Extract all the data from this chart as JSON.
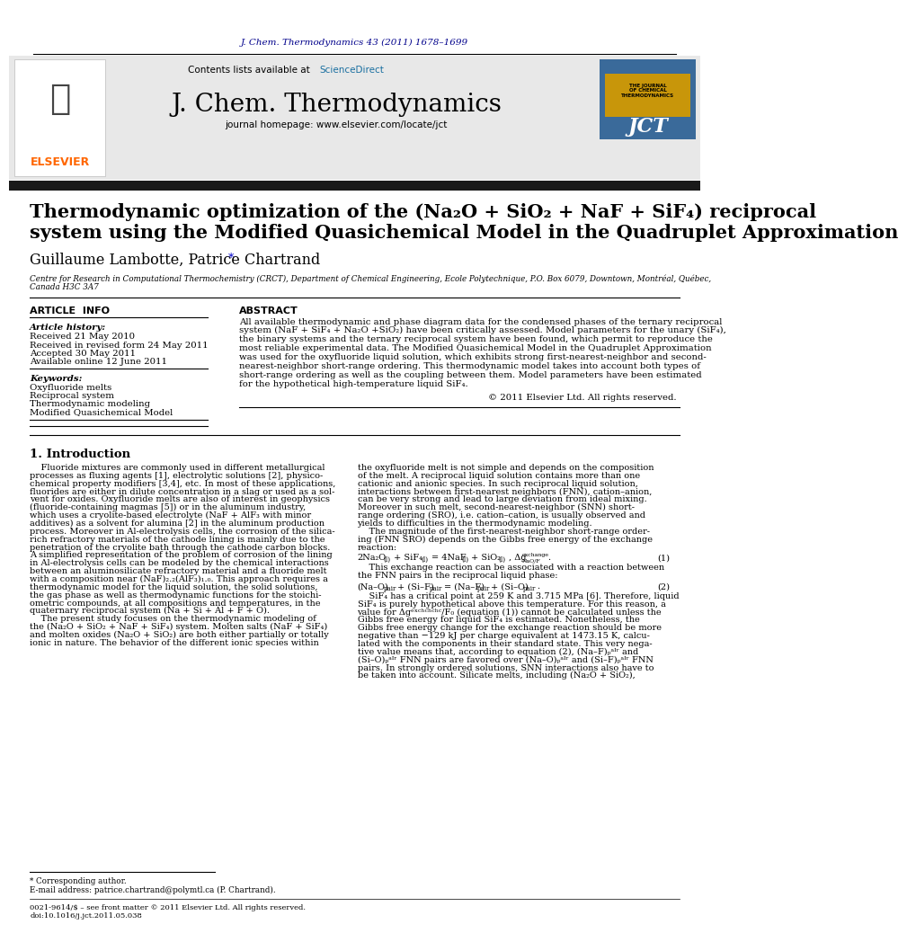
{
  "page_bg": "#ffffff",
  "journal_ref": "J. Chem. Thermodynamics 43 (2011) 1678–1699",
  "journal_ref_color": "#00008B",
  "header_bg": "#e8e8e8",
  "header_text": "Contents lists available at",
  "sciencedirect_text": "ScienceDirect",
  "sciencedirect_color": "#1a6fa0",
  "journal_name": "J. Chem. Thermodynamics",
  "homepage_text": "journal homepage: www.elsevier.com/locate/jct",
  "elsevier_color": "#ff6600",
  "thick_bar_color": "#1a1a1a",
  "article_title_line1": "Thermodynamic optimization of the (Na₂O + SiO₂ + NaF + SiF₄) reciprocal",
  "article_title_line2": "system using the Modified Quasichemical Model in the Quadruplet Approximation",
  "authors": "Guillaume Lambotte, Patrice Chartrand",
  "affiliation": "Centre for Research in Computational Thermochemistry (CRCT), Department of Chemical Engineering, Ecole Polytechnique, P.O. Box 6079, Downtown, Montréal, Québec,",
  "affiliation2": "Canada H3C 3A7",
  "article_info_label": "ARTICLE  INFO",
  "abstract_label": "ABSTRACT",
  "article_history_label": "Article history:",
  "received1": "Received 21 May 2010",
  "received2": "Received in revised form 24 May 2011",
  "accepted": "Accepted 30 May 2011",
  "available": "Available online 12 June 2011",
  "keywords_label": "Keywords:",
  "kw1": "Oxyfluoride melts",
  "kw2": "Reciprocal system",
  "kw3": "Thermodynamic modeling",
  "kw4": "Modified Quasichemical Model",
  "copyright_text": "© 2011 Elsevier Ltd. All rights reserved.",
  "intro_header": "1. Introduction",
  "footnote_label": "* Corresponding author.",
  "footnote_email": "E-mail address: patrice.chartrand@polymtl.ca (P. Chartrand).",
  "issn_line": "0021-9614/$ – see front matter © 2011 Elsevier Ltd. All rights reserved.",
  "doi_line": "doi:10.1016/j.jct.2011.05.038"
}
